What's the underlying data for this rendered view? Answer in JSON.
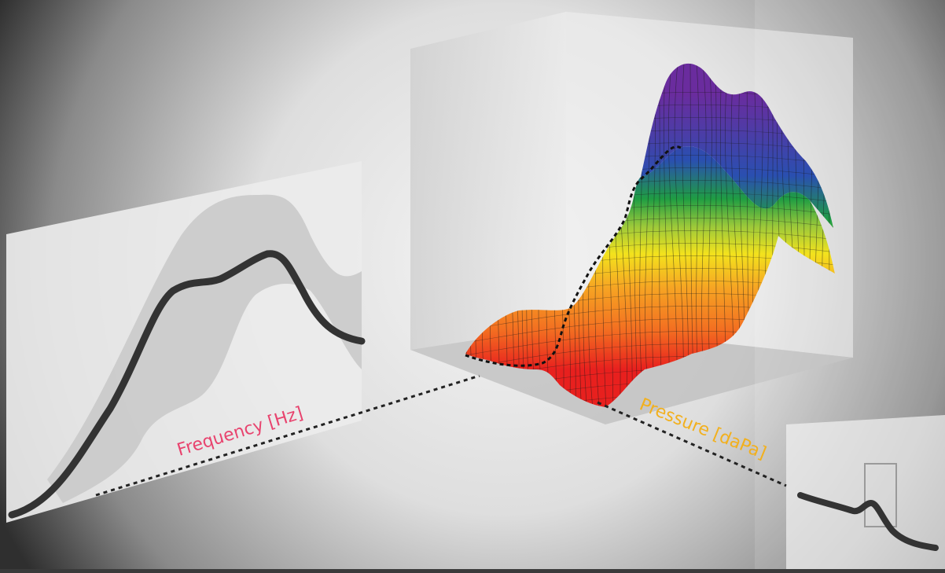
{
  "labels": {
    "frequency": "Frequency [Hz]",
    "pressure": "Pressure [daPa]"
  },
  "colors": {
    "frequency_label": "#e8436e",
    "pressure_label": "#f2b01e",
    "curve": "#333333",
    "band": "#c8c8c8",
    "background_light": "#f2f2f2",
    "background_dark": "#2e2e2e",
    "surface_gradient": [
      "#e8201e",
      "#f36d21",
      "#f6a623",
      "#f3e21d",
      "#9cc93a",
      "#1f9d43",
      "#2a4fb0",
      "#5d2f9e"
    ]
  }
}
